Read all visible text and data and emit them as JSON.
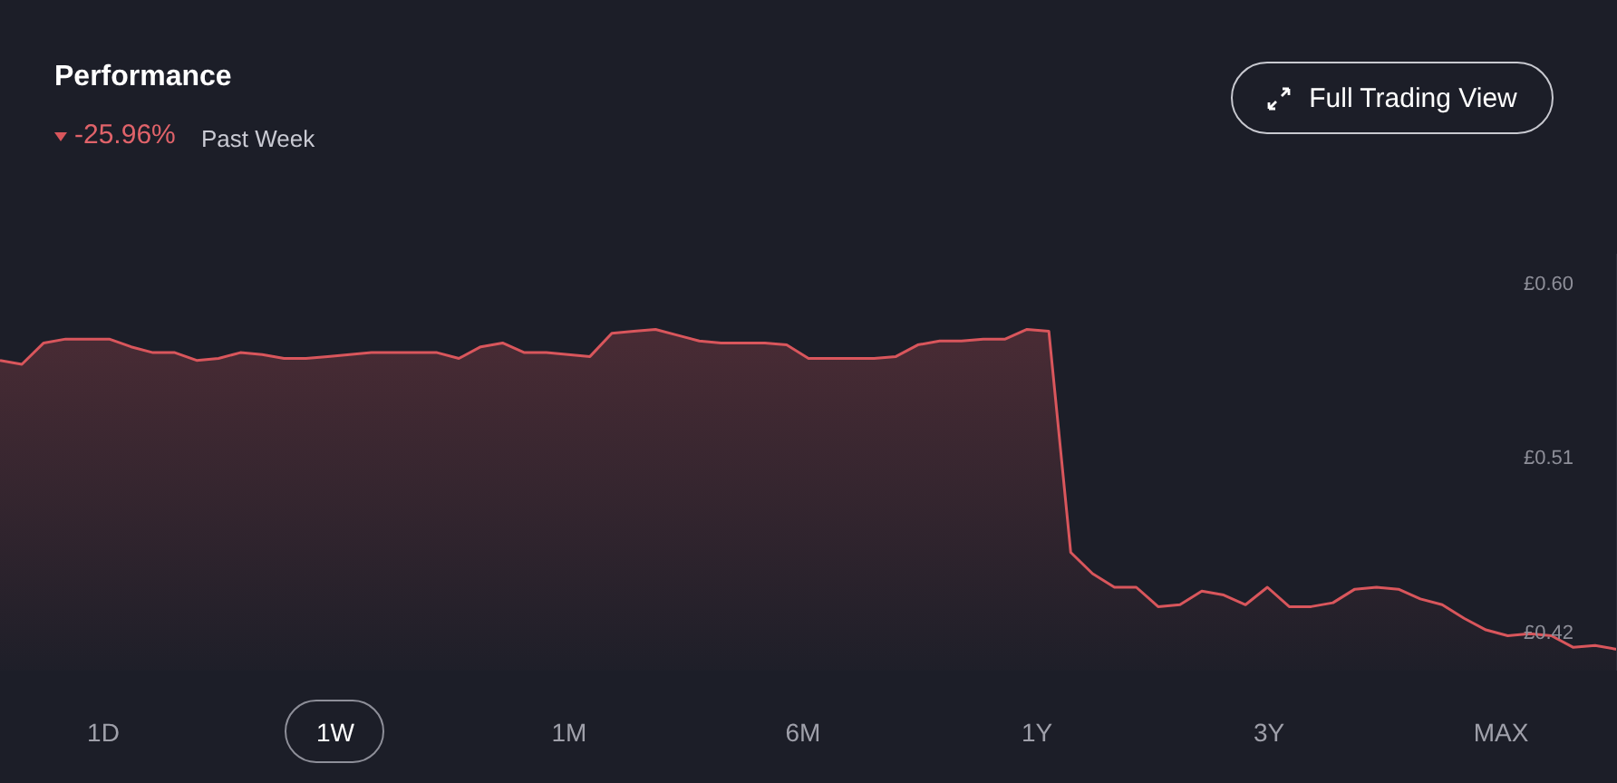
{
  "chart_data": {
    "type": "area",
    "title": "Performance",
    "subtitle": "-25.96%",
    "annotations": [
      "Past Week",
      "Full Trading View",
      "1D",
      "1W",
      "1M",
      "6M",
      "1Y",
      "3Y",
      "MAX"
    ],
    "categories": [
      null,
      null,
      null,
      null,
      null,
      null,
      null,
      null,
      null,
      null,
      null,
      null,
      null,
      null,
      null,
      null,
      null,
      null,
      null,
      null,
      null,
      null,
      null,
      null,
      null,
      null,
      null,
      null,
      null,
      null,
      null,
      null,
      null,
      null,
      null,
      null,
      null,
      null,
      null,
      null,
      null,
      null,
      null,
      null,
      null,
      null,
      null,
      null,
      null,
      null,
      null,
      null,
      null,
      null,
      null,
      null,
      null,
      null,
      null,
      null,
      null,
      null,
      null,
      null,
      null,
      null,
      null,
      null,
      null,
      null,
      null,
      null,
      null,
      null,
      null
    ],
    "values": [
      0.56,
      0.558,
      0.569,
      0.571,
      0.571,
      0.571,
      0.567,
      0.564,
      0.564,
      0.56,
      0.561,
      0.564,
      0.563,
      0.561,
      0.561,
      0.562,
      0.563,
      0.564,
      0.564,
      0.564,
      0.564,
      0.561,
      0.567,
      0.569,
      0.564,
      0.564,
      0.563,
      0.562,
      0.574,
      0.575,
      0.576,
      0.573,
      0.57,
      0.569,
      0.569,
      0.569,
      0.568,
      0.561,
      0.561,
      0.561,
      0.561,
      0.562,
      0.568,
      0.57,
      0.57,
      0.571,
      0.571,
      0.576,
      0.575,
      0.461,
      0.45,
      0.443,
      0.443,
      0.433,
      0.434,
      0.441,
      0.439,
      0.434,
      0.443,
      0.433,
      0.433,
      0.435,
      0.442,
      0.443,
      0.442,
      0.437,
      0.434,
      0.427,
      0.421,
      0.418,
      0.419,
      0.418,
      0.412,
      0.413,
      0.411
    ],
    "color": "#d9565c",
    "ylim": [
      0.4,
      0.615
    ],
    "yticks": [
      {
        "value": 0.6,
        "label": "£0.60"
      },
      {
        "value": 0.51,
        "label": "£0.51"
      },
      {
        "value": 0.42,
        "label": "£0.42"
      }
    ],
    "tick_labels": "y"
  }
}
